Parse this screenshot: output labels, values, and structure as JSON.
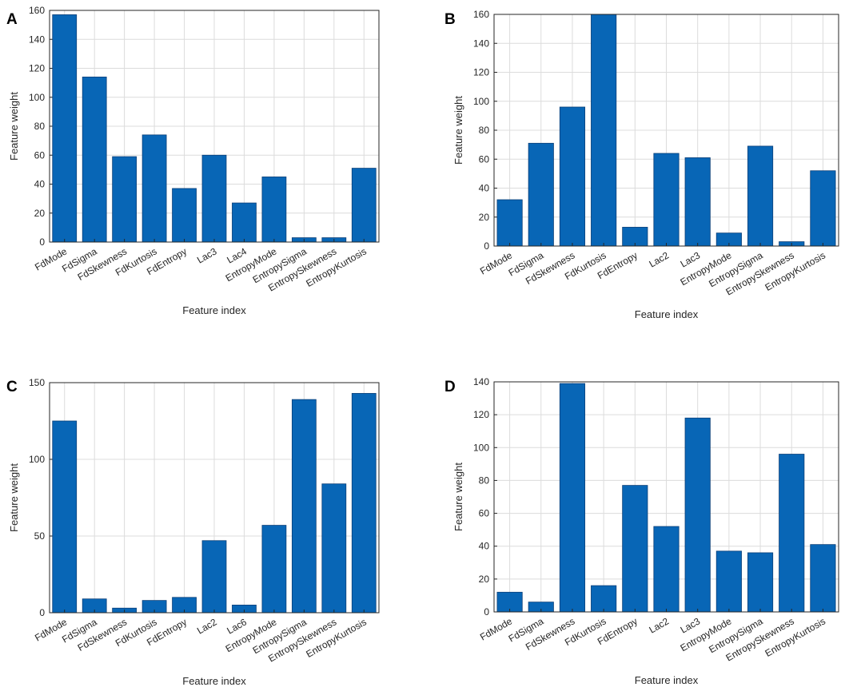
{
  "chart_data": [
    {
      "panel": "A",
      "type": "bar",
      "categories": [
        "FdMode",
        "FdSigma",
        "FdSkewness",
        "FdKurtosis",
        "FdEntropy",
        "Lac3",
        "Lac4",
        "EntropyMode",
        "EntropySigma",
        "EntropySkewness",
        "EntropyKurtosis"
      ],
      "values": [
        157,
        114,
        59,
        74,
        37,
        60,
        27,
        45,
        3,
        3,
        51
      ],
      "xlabel": "Feature index",
      "ylabel": "Feature weight",
      "ylim": [
        0,
        160
      ],
      "yticks": [
        0,
        20,
        40,
        60,
        80,
        100,
        120,
        140,
        160
      ],
      "grid": true
    },
    {
      "panel": "B",
      "type": "bar",
      "categories": [
        "FdMode",
        "FdSigma",
        "FdSkewness",
        "FdKurtosis",
        "FdEntropy",
        "Lac2",
        "Lac3",
        "EntropyMode",
        "EntropySigma",
        "EntropySkewness",
        "EntropyKurtosis"
      ],
      "values": [
        32,
        71,
        96,
        160,
        13,
        64,
        61,
        9,
        69,
        3,
        52
      ],
      "xlabel": "Feature index",
      "ylabel": "Feature weight",
      "ylim": [
        0,
        160
      ],
      "yticks": [
        0,
        20,
        40,
        60,
        80,
        100,
        120,
        140,
        160
      ],
      "grid": true
    },
    {
      "panel": "C",
      "type": "bar",
      "categories": [
        "FdMode",
        "FdSigma",
        "FdSkewness",
        "FdKurtosis",
        "FdEntropy",
        "Lac2",
        "Lac6",
        "EntropyMode",
        "EntropySigma",
        "EntropySkewness",
        "EntropyKurtosis"
      ],
      "values": [
        125,
        9,
        3,
        8,
        10,
        47,
        5,
        57,
        139,
        84,
        143
      ],
      "xlabel": "Feature index",
      "ylabel": "Feature weight",
      "ylim": [
        0,
        150
      ],
      "yticks": [
        0,
        50,
        100,
        150
      ],
      "grid": true
    },
    {
      "panel": "D",
      "type": "bar",
      "categories": [
        "FdMode",
        "FdSigma",
        "FdSkewness",
        "FdKurtosis",
        "FdEntropy",
        "Lac2",
        "Lac3",
        "EntropyMode",
        "EntropySigma",
        "EntropySkewness",
        "EntropyKurtosis"
      ],
      "values": [
        12,
        6,
        139,
        16,
        77,
        52,
        118,
        37,
        36,
        96,
        41
      ],
      "xlabel": "Feature index",
      "ylabel": "Feature weight",
      "ylim": [
        0,
        140
      ],
      "yticks": [
        0,
        20,
        40,
        60,
        80,
        100,
        120,
        140
      ],
      "grid": true
    }
  ]
}
